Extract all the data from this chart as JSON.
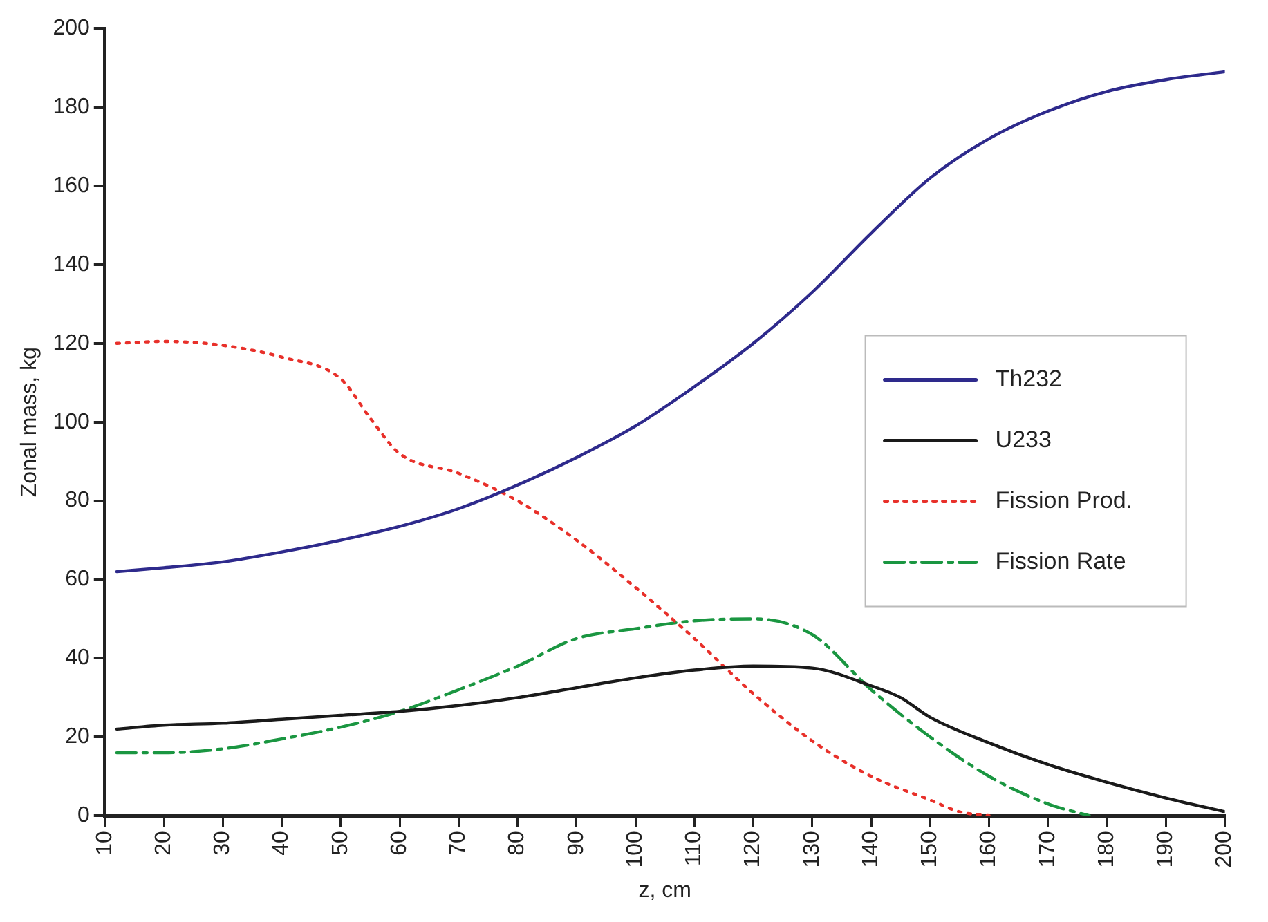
{
  "chart_data": {
    "type": "line",
    "xlabel": "z, cm",
    "ylabel": "Zonal mass, kg",
    "xlim": [
      10,
      200
    ],
    "xticks": [
      10,
      20,
      30,
      40,
      50,
      60,
      70,
      80,
      90,
      100,
      110,
      120,
      130,
      140,
      150,
      160,
      170,
      180,
      190,
      200
    ],
    "ylim": [
      0,
      200
    ],
    "yticks": [
      0,
      20,
      40,
      60,
      80,
      100,
      120,
      140,
      160,
      180,
      200
    ],
    "grid": false,
    "legend": "right",
    "marker": "none",
    "series": [
      {
        "name": "Th232",
        "color": "#2e2a8c",
        "line_style": "solid",
        "x": [
          12,
          20,
          30,
          40,
          50,
          60,
          70,
          80,
          90,
          100,
          110,
          120,
          130,
          140,
          150,
          160,
          170,
          180,
          190,
          200
        ],
        "values": [
          62,
          63,
          64.5,
          67,
          70,
          73.5,
          78,
          84,
          91,
          99,
          109,
          120,
          133,
          148,
          162,
          172,
          179,
          184,
          187,
          189
        ]
      },
      {
        "name": "U233",
        "color": "#1a1a1a",
        "line_style": "solid",
        "x": [
          12,
          20,
          30,
          40,
          50,
          60,
          70,
          80,
          90,
          100,
          110,
          120,
          130,
          140,
          145,
          150,
          160,
          170,
          180,
          190,
          200
        ],
        "values": [
          22,
          23,
          23.5,
          24.5,
          25.5,
          26.5,
          28,
          30,
          32.5,
          35,
          37,
          38,
          37.5,
          33,
          30,
          25,
          18.5,
          13,
          8.5,
          4.5,
          1
        ]
      },
      {
        "name": "Fission Prod.",
        "color": "#e8302a",
        "line_style": "dotted",
        "x": [
          12,
          20,
          30,
          40,
          50,
          55,
          60,
          70,
          80,
          90,
          100,
          110,
          120,
          130,
          140,
          150,
          155,
          160
        ],
        "values": [
          120,
          120.5,
          119.5,
          116.5,
          111,
          101,
          92,
          87,
          80,
          70,
          58,
          45,
          31,
          19,
          10,
          4,
          1,
          0
        ]
      },
      {
        "name": "Fission Rate",
        "color": "#1a9641",
        "line_style": "dashed",
        "x": [
          12,
          20,
          30,
          40,
          50,
          60,
          70,
          80,
          90,
          100,
          110,
          120,
          130,
          140,
          150,
          160,
          170,
          177
        ],
        "values": [
          16,
          16,
          17,
          19.5,
          22.5,
          26.5,
          32,
          38,
          45,
          47.5,
          49.5,
          50,
          46,
          32,
          20,
          10,
          3,
          0
        ]
      }
    ]
  }
}
